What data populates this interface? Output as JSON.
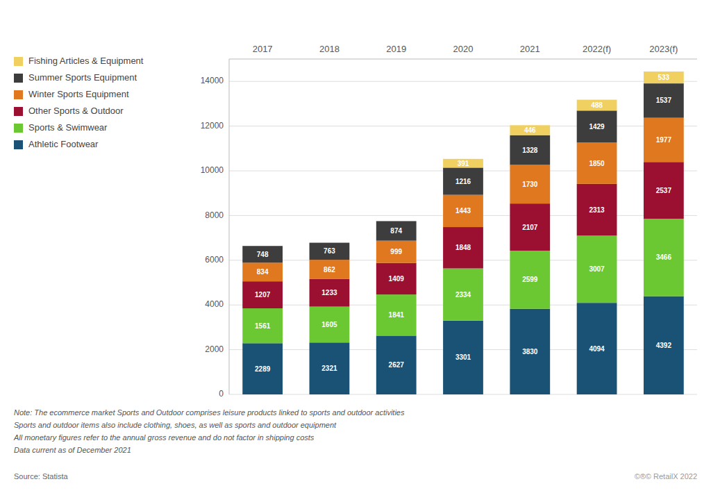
{
  "chart_data": {
    "type": "bar",
    "stacked": true,
    "categories": [
      "2017",
      "2018",
      "2019",
      "2020",
      "2021",
      "2022(f)",
      "2023(f)"
    ],
    "series": [
      {
        "name": "Athletic Footwear",
        "color": "#1a5276",
        "values": [
          2289,
          2321,
          2627,
          3301,
          3830,
          4094,
          4392
        ]
      },
      {
        "name": "Sports & Swimwear",
        "color": "#6cc832",
        "values": [
          1561,
          1605,
          1841,
          2334,
          2599,
          3007,
          3466
        ]
      },
      {
        "name": "Other Sports & Outdoor",
        "color": "#9b1030",
        "values": [
          1207,
          1233,
          1409,
          1848,
          2107,
          2313,
          2537
        ]
      },
      {
        "name": "Winter Sports Equipment",
        "color": "#e07820",
        "values": [
          834,
          862,
          999,
          1443,
          1730,
          1850,
          1977
        ]
      },
      {
        "name": "Summer Sports Equipment",
        "color": "#3d3d3d",
        "values": [
          748,
          763,
          874,
          1216,
          1328,
          1429,
          1537
        ]
      },
      {
        "name": "Fishing Articles & Equipment",
        "color": "#f0d060",
        "values": [
          0,
          0,
          0,
          391,
          446,
          488,
          533
        ]
      }
    ],
    "ylim": [
      0,
      15000
    ],
    "yticks": [
      0,
      2000,
      4000,
      6000,
      8000,
      10000,
      12000,
      14000
    ],
    "grid": true,
    "legend": "left",
    "data_labels": true,
    "notes": [
      "Note: The ecommerce market Sports and Outdoor comprises leisure products linked to sports and outdoor activities",
      "Sports and outdoor items also include clothing, shoes, as well as sports and outdoor equipment",
      "All monetary figures refer to the annual gross revenue and do not factor in shipping costs",
      "Data current as of December 2021"
    ],
    "source": "Source: Statista",
    "watermark": "©®© RetailX 2022"
  }
}
